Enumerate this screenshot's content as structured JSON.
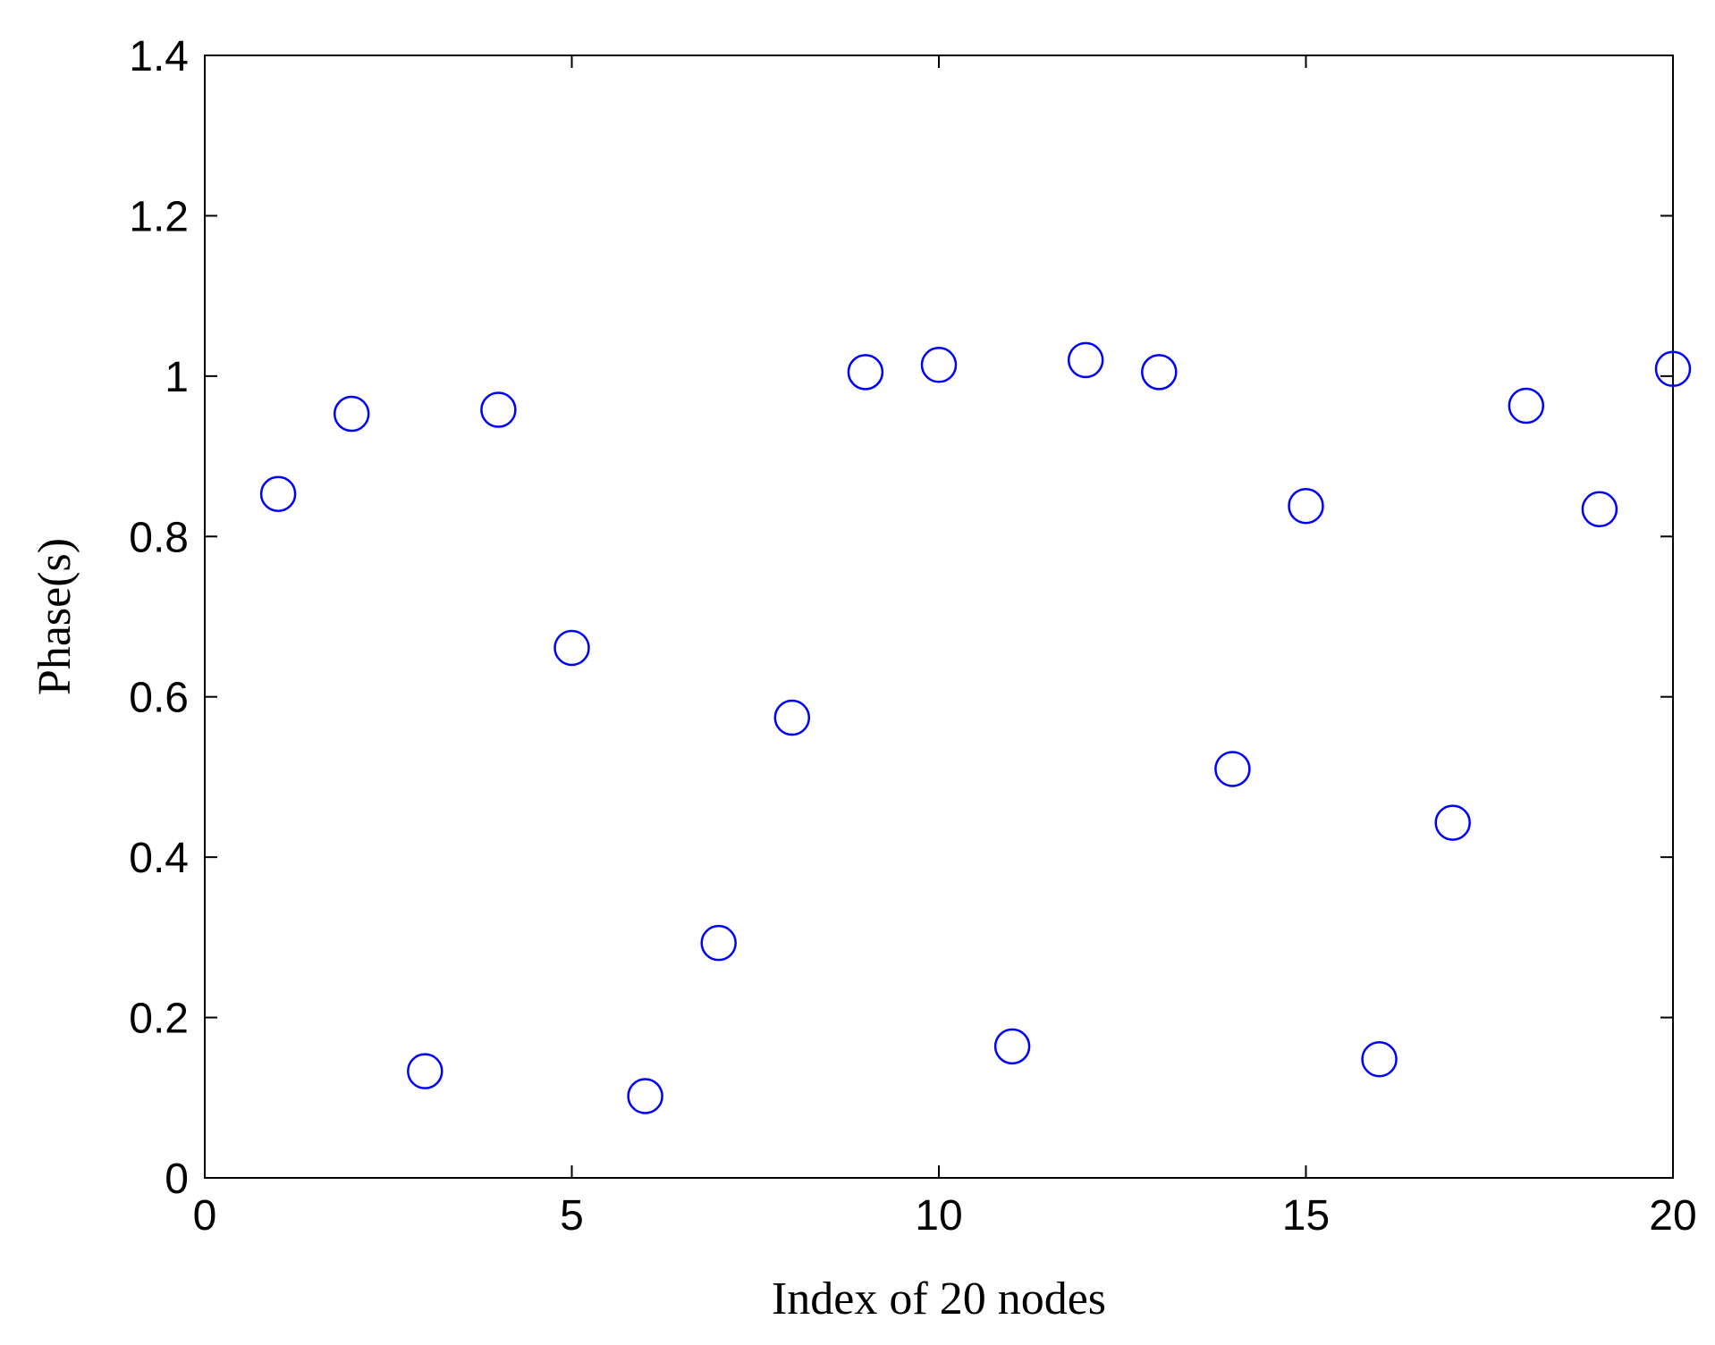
{
  "chart_data": {
    "type": "scatter",
    "title": "",
    "xlabel": "Index of 20 nodes",
    "ylabel": "Phase(s)",
    "xlim": [
      0,
      20
    ],
    "ylim": [
      0,
      1.4
    ],
    "xticks": [
      0,
      5,
      10,
      15,
      20
    ],
    "yticks": [
      0,
      0.2,
      0.4,
      0.6,
      0.8,
      1,
      1.2,
      1.4
    ],
    "xtick_labels": [
      "0",
      "5",
      "10",
      "15",
      "20"
    ],
    "ytick_labels": [
      "0",
      "0.2",
      "0.4",
      "0.6",
      "0.8",
      "1",
      "1.2",
      "1.4"
    ],
    "grid": false,
    "marker": "open-circle",
    "marker_color": "#0000ff",
    "series": [
      {
        "x": [
          1,
          2,
          3,
          4,
          5,
          6,
          7,
          8,
          9,
          10,
          11,
          12,
          13,
          14,
          15,
          16,
          17,
          18,
          19,
          20
        ],
        "y": [
          0.853,
          0.953,
          0.133,
          0.958,
          0.661,
          0.102,
          0.293,
          0.574,
          1.005,
          1.014,
          0.164,
          1.02,
          1.005,
          0.51,
          0.838,
          0.148,
          0.443,
          0.963,
          0.834,
          1.009
        ]
      }
    ]
  }
}
